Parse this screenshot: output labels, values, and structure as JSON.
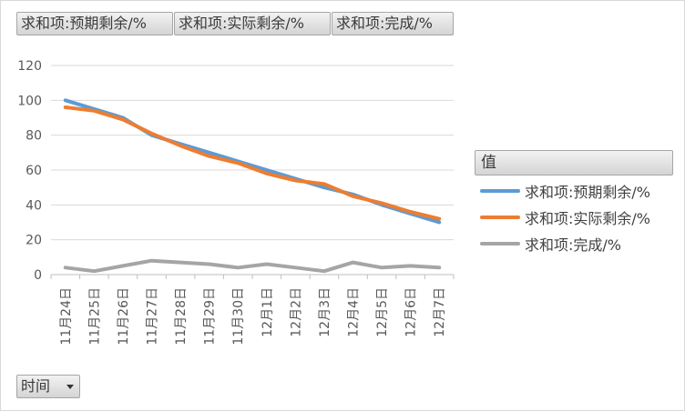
{
  "field_buttons": [
    "求和项:预期剩余/%",
    "求和项:实际剩余/%",
    "求和项:完成/%"
  ],
  "legend_title": "值",
  "axis_field_button": "时间",
  "chart_data": {
    "type": "line",
    "categories": [
      "11月24日",
      "11月25日",
      "11月26日",
      "11月27日",
      "11月28日",
      "11月29日",
      "11月30日",
      "12月1日",
      "12月2日",
      "12月3日",
      "12月4日",
      "12月5日",
      "12月6日",
      "12月7日"
    ],
    "ylim": [
      0,
      120
    ],
    "yticks": [
      0,
      20,
      40,
      60,
      80,
      100,
      120
    ],
    "grid": true,
    "legend_position": "right",
    "series": [
      {
        "name": "求和项:预期剩余/%",
        "color": "#5b9bd5",
        "values": [
          100,
          95,
          90,
          80,
          75,
          70,
          65,
          60,
          55,
          50,
          46,
          40,
          35,
          30
        ]
      },
      {
        "name": "求和项:实际剩余/%",
        "color": "#ed7d31",
        "values": [
          96,
          94,
          89,
          81,
          74,
          68,
          64,
          58,
          54,
          52,
          45,
          41,
          36,
          32
        ]
      },
      {
        "name": "求和项:完成/%",
        "color": "#a5a5a5",
        "values": [
          4,
          2,
          5,
          8,
          7,
          6,
          4,
          6,
          4,
          2,
          7,
          4,
          5,
          4
        ]
      }
    ]
  }
}
